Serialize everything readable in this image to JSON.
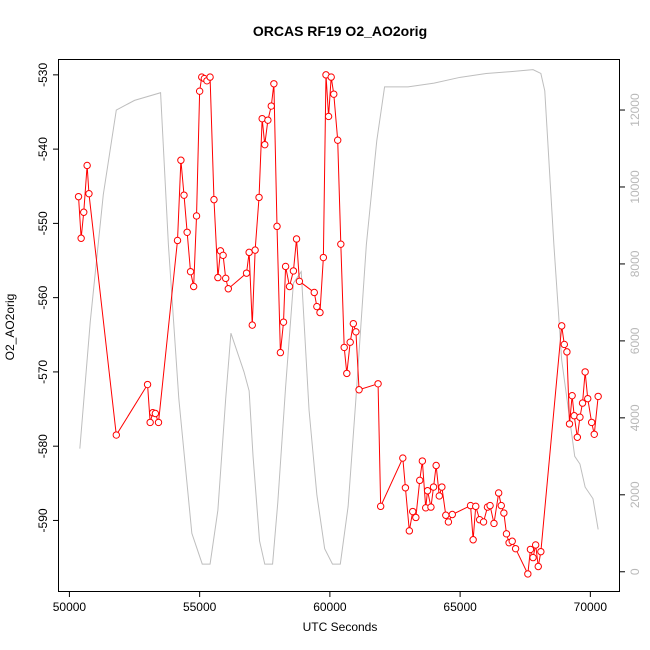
{
  "chart_data": {
    "type": "line",
    "title": "ORCAS RF19 O2_AO2orig",
    "xlabel": "UTC Seconds",
    "ylabel": "O2_AO2orig",
    "xlim": [
      49600,
      71100
    ],
    "ylim": [
      -599.5,
      -528.0
    ],
    "y2lim": [
      -500,
      13300
    ],
    "x_ticks": [
      50000,
      55000,
      60000,
      65000,
      70000
    ],
    "x_tick_labels": [
      "50000",
      "55000",
      "60000",
      "65000",
      "70000"
    ],
    "y_ticks": [
      -590,
      -580,
      -570,
      -560,
      -550,
      -540,
      -530
    ],
    "y_tick_labels": [
      "-590",
      "-580",
      "-570",
      "-560",
      "-550",
      "-540",
      "-530"
    ],
    "y2_ticks": [
      0,
      2000,
      4000,
      6000,
      8000,
      10000,
      12000
    ],
    "y2_tick_labels": [
      "0",
      "2000",
      "4000",
      "6000",
      "8000",
      "10000",
      "12000"
    ],
    "colors": {
      "primary": "#ff0000",
      "secondary": "#bebebe",
      "axis": "#000000",
      "right_axis": "#b8b8b8"
    },
    "series": [
      {
        "axis": "left",
        "style": "line+circle",
        "color": "#ff0000",
        "points": [
          [
            50350,
            -546.4
          ],
          [
            50450,
            -552.0
          ],
          [
            50550,
            -548.5
          ],
          [
            50680,
            -542.2
          ],
          [
            50750,
            -546.0
          ],
          [
            51800,
            -578.5
          ],
          [
            53000,
            -571.7
          ],
          [
            53100,
            -576.8
          ],
          [
            53200,
            -575.5
          ],
          [
            53300,
            -575.6
          ],
          [
            53420,
            -576.8
          ],
          [
            54150,
            -552.3
          ],
          [
            54280,
            -541.5
          ],
          [
            54400,
            -546.2
          ],
          [
            54520,
            -551.2
          ],
          [
            54650,
            -556.5
          ],
          [
            54770,
            -558.5
          ],
          [
            54880,
            -549.0
          ],
          [
            55000,
            -532.2
          ],
          [
            55080,
            -530.3
          ],
          [
            55180,
            -530.5
          ],
          [
            55280,
            -530.8
          ],
          [
            55400,
            -530.3
          ],
          [
            55550,
            -546.8
          ],
          [
            55700,
            -557.3
          ],
          [
            55800,
            -553.7
          ],
          [
            55900,
            -554.3
          ],
          [
            56000,
            -557.4
          ],
          [
            56100,
            -558.8
          ],
          [
            56800,
            -556.7
          ],
          [
            56900,
            -553.9
          ],
          [
            57020,
            -563.7
          ],
          [
            57130,
            -553.6
          ],
          [
            57280,
            -546.5
          ],
          [
            57400,
            -535.9
          ],
          [
            57500,
            -539.4
          ],
          [
            57620,
            -536.1
          ],
          [
            57750,
            -534.2
          ],
          [
            57850,
            -531.2
          ],
          [
            57970,
            -550.4
          ],
          [
            58100,
            -567.4
          ],
          [
            58220,
            -563.3
          ],
          [
            58300,
            -555.8
          ],
          [
            58450,
            -558.5
          ],
          [
            58600,
            -556.4
          ],
          [
            58720,
            -552.1
          ],
          [
            58830,
            -557.8
          ],
          [
            59400,
            -559.3
          ],
          [
            59500,
            -561.2
          ],
          [
            59620,
            -562.0
          ],
          [
            59750,
            -554.6
          ],
          [
            59850,
            -530.0
          ],
          [
            59950,
            -535.6
          ],
          [
            60050,
            -530.3
          ],
          [
            60150,
            -532.6
          ],
          [
            60300,
            -538.8
          ],
          [
            60420,
            -552.8
          ],
          [
            60550,
            -566.7
          ],
          [
            60650,
            -570.2
          ],
          [
            60780,
            -566.0
          ],
          [
            60900,
            -563.5
          ],
          [
            61000,
            -564.6
          ],
          [
            61120,
            -572.4
          ],
          [
            61850,
            -571.6
          ],
          [
            61950,
            -588.1
          ],
          [
            62800,
            -581.6
          ],
          [
            62900,
            -585.6
          ],
          [
            63050,
            -591.4
          ],
          [
            63180,
            -588.8
          ],
          [
            63300,
            -589.6
          ],
          [
            63450,
            -584.6
          ],
          [
            63550,
            -582.0
          ],
          [
            63680,
            -588.3
          ],
          [
            63750,
            -586.0
          ],
          [
            63880,
            -588.2
          ],
          [
            63980,
            -585.5
          ],
          [
            64080,
            -582.6
          ],
          [
            64200,
            -586.7
          ],
          [
            64300,
            -585.5
          ],
          [
            64450,
            -589.3
          ],
          [
            64550,
            -590.2
          ],
          [
            64700,
            -589.2
          ],
          [
            65400,
            -588.0
          ],
          [
            65500,
            -592.6
          ],
          [
            65600,
            -588.1
          ],
          [
            65750,
            -589.9
          ],
          [
            65900,
            -590.2
          ],
          [
            66050,
            -588.2
          ],
          [
            66150,
            -588.0
          ],
          [
            66300,
            -590.4
          ],
          [
            66480,
            -586.3
          ],
          [
            66580,
            -588.0
          ],
          [
            66680,
            -589.0
          ],
          [
            66780,
            -591.8
          ],
          [
            66880,
            -593.0
          ],
          [
            67000,
            -592.8
          ],
          [
            67130,
            -593.8
          ],
          [
            67600,
            -597.2
          ],
          [
            67700,
            -593.9
          ],
          [
            67800,
            -595.0
          ],
          [
            67900,
            -593.3
          ],
          [
            68000,
            -596.2
          ],
          [
            68100,
            -594.2
          ],
          [
            68900,
            -563.8
          ],
          [
            69000,
            -566.3
          ],
          [
            69100,
            -567.3
          ],
          [
            69200,
            -577.0
          ],
          [
            69300,
            -573.2
          ],
          [
            69380,
            -575.9
          ],
          [
            69500,
            -578.8
          ],
          [
            69600,
            -576.1
          ],
          [
            69700,
            -574.2
          ],
          [
            69800,
            -570.0
          ],
          [
            69900,
            -573.6
          ],
          [
            70050,
            -576.8
          ],
          [
            70150,
            -578.4
          ],
          [
            70300,
            -573.3
          ]
        ]
      },
      {
        "axis": "right",
        "style": "line",
        "color": "#bebebe",
        "points": [
          [
            50400,
            3200
          ],
          [
            50800,
            6500
          ],
          [
            51300,
            9800
          ],
          [
            51800,
            12000
          ],
          [
            52500,
            12250
          ],
          [
            53500,
            12450
          ],
          [
            53800,
            8500
          ],
          [
            54200,
            4500
          ],
          [
            54700,
            1000
          ],
          [
            55100,
            200
          ],
          [
            55400,
            200
          ],
          [
            55700,
            1600
          ],
          [
            56000,
            4500
          ],
          [
            56200,
            6200
          ],
          [
            56400,
            5800
          ],
          [
            56700,
            5200
          ],
          [
            56900,
            4700
          ],
          [
            57050,
            3000
          ],
          [
            57300,
            800
          ],
          [
            57500,
            200
          ],
          [
            57800,
            200
          ],
          [
            58000,
            1800
          ],
          [
            58300,
            4800
          ],
          [
            58600,
            7500
          ],
          [
            58900,
            7800
          ],
          [
            59200,
            4200
          ],
          [
            59500,
            2000
          ],
          [
            59800,
            600
          ],
          [
            60100,
            200
          ],
          [
            60400,
            200
          ],
          [
            60700,
            1700
          ],
          [
            61000,
            4500
          ],
          [
            61400,
            8500
          ],
          [
            61800,
            11200
          ],
          [
            62100,
            12600
          ],
          [
            63000,
            12600
          ],
          [
            64000,
            12700
          ],
          [
            65000,
            12850
          ],
          [
            66000,
            12950
          ],
          [
            67000,
            13000
          ],
          [
            67800,
            13050
          ],
          [
            68100,
            12950
          ],
          [
            68250,
            12500
          ],
          [
            68600,
            8500
          ],
          [
            68900,
            5500
          ],
          [
            69200,
            4000
          ],
          [
            69400,
            3000
          ],
          [
            69600,
            2800
          ],
          [
            69800,
            2200
          ],
          [
            70100,
            1900
          ],
          [
            70300,
            1100
          ]
        ]
      }
    ]
  }
}
